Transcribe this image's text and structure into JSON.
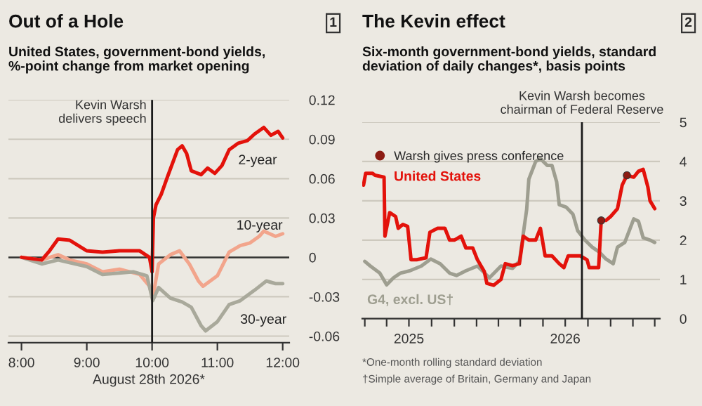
{
  "chart_data": [
    {
      "type": "line",
      "title": "Out of a Hole",
      "subtitle": "United States, government-bond yields,\n%-point change from market opening",
      "xlabel": "August 28th 2026*",
      "annotations": [
        "1"
      ],
      "xlim": [
        7.8,
        12.1
      ],
      "xticks": [
        {
          "value": 8,
          "label": "8:00"
        },
        {
          "value": 9,
          "label": "9:00"
        },
        {
          "value": 10,
          "label": "10:00"
        },
        {
          "value": 11,
          "label": "11:00"
        },
        {
          "value": 12,
          "label": "12:00"
        }
      ],
      "ylim": [
        -0.065,
        0.12
      ],
      "yticks": [
        -0.06,
        -0.03,
        0,
        0.03,
        0.06,
        0.09,
        0.12
      ],
      "grid": "y",
      "legend": false,
      "ref_lines": [
        {
          "axis": "x",
          "value": 10,
          "label": "Kevin Warsh\ndelivers speech",
          "color": "#1a1a1a"
        }
      ],
      "series": [
        {
          "name": "10-year",
          "color": "#f2a58c",
          "x": [
            8.0,
            8.31,
            8.56,
            8.74,
            9.0,
            9.24,
            9.5,
            9.81,
            9.96,
            10.01,
            10.1,
            10.28,
            10.42,
            10.57,
            10.71,
            10.78,
            11.0,
            11.18,
            11.35,
            11.5,
            11.64,
            11.71,
            11.89,
            12.0
          ],
          "values": [
            0.0,
            -0.002,
            0.002,
            -0.002,
            -0.005,
            -0.011,
            -0.009,
            -0.013,
            -0.022,
            -0.031,
            -0.005,
            0.002,
            0.005,
            -0.005,
            -0.018,
            -0.022,
            -0.014,
            0.004,
            0.009,
            0.011,
            0.016,
            0.02,
            0.016,
            0.018
          ]
        },
        {
          "name": "30-year",
          "color": "#a9a99b",
          "x": [
            8.0,
            8.31,
            8.56,
            9.0,
            9.24,
            9.71,
            9.92,
            10.01,
            10.1,
            10.28,
            10.46,
            10.6,
            10.75,
            10.82,
            11.0,
            11.18,
            11.35,
            11.57,
            11.75,
            11.89,
            12.0
          ],
          "values": [
            0.0,
            -0.005,
            -0.002,
            -0.007,
            -0.013,
            -0.011,
            -0.014,
            -0.033,
            -0.023,
            -0.031,
            -0.034,
            -0.038,
            -0.052,
            -0.056,
            -0.049,
            -0.036,
            -0.033,
            -0.025,
            -0.018,
            -0.02,
            -0.02
          ]
        },
        {
          "name": "2-year",
          "color": "#e3120b",
          "x": [
            8.0,
            8.31,
            8.43,
            8.56,
            8.74,
            9.0,
            9.24,
            9.5,
            9.81,
            9.96,
            10.0,
            10.02,
            10.06,
            10.14,
            10.24,
            10.39,
            10.46,
            10.53,
            10.6,
            10.75,
            10.85,
            10.96,
            11.07,
            11.18,
            11.32,
            11.46,
            11.57,
            11.71,
            11.82,
            11.93,
            12.0
          ],
          "values": [
            0.0,
            -0.002,
            0.005,
            0.014,
            0.013,
            0.005,
            0.004,
            0.005,
            0.005,
            0.0,
            -0.011,
            0.03,
            0.04,
            0.048,
            0.062,
            0.082,
            0.085,
            0.079,
            0.066,
            0.063,
            0.068,
            0.064,
            0.07,
            0.082,
            0.087,
            0.089,
            0.094,
            0.099,
            0.093,
            0.096,
            0.091
          ]
        }
      ]
    },
    {
      "type": "line",
      "title": "The Kevin effect",
      "subtitle": "Six-month government-bond yields, standard\ndeviation of daily changes*, basis points",
      "annotations": [
        "2",
        "*One-month rolling standard deviation",
        "†Simple average of Britain, Germany and Japan"
      ],
      "xlim": [
        "2024-09-14",
        "2026-08-10"
      ],
      "xticks": [
        {
          "value": "2024-09-20",
          "label": null
        },
        {
          "value": "2024-11-10",
          "label": null
        },
        {
          "value": "2025-01-01",
          "label": "2025"
        },
        {
          "value": "2025-02-23",
          "label": null
        },
        {
          "value": "2025-04-17",
          "label": null
        },
        {
          "value": "2025-06-08",
          "label": null
        },
        {
          "value": "2025-07-29",
          "label": null
        },
        {
          "value": "2025-09-18",
          "label": null
        },
        {
          "value": "2025-11-10",
          "label": null
        },
        {
          "value": "2026-01-01",
          "label": "2026"
        },
        {
          "value": "2026-02-23",
          "label": null
        },
        {
          "value": "2026-04-17",
          "label": null
        },
        {
          "value": "2026-06-08",
          "label": null
        },
        {
          "value": "2026-07-29",
          "label": null
        }
      ],
      "ylim": [
        0,
        5
      ],
      "yticks": [
        0,
        1,
        2,
        3,
        4,
        5
      ],
      "grid": "y",
      "legend": "top left",
      "ref_lines": [
        {
          "axis": "x",
          "value": "2026-02-09",
          "label": "Kevin Warsh becomes\nchairman of Federal Reserve",
          "color": "#1a1a1a"
        }
      ],
      "series": [
        {
          "name": "G4, excl. US†",
          "color": "#9e9e90",
          "x": [
            "2024-09-20",
            "2024-10-03",
            "2024-10-25",
            "2024-11-10",
            "2024-11-26",
            "2024-12-12",
            "2025-01-03",
            "2025-01-30",
            "2025-02-21",
            "2025-03-15",
            "2025-04-06",
            "2025-04-22",
            "2025-05-14",
            "2025-06-10",
            "2025-07-08",
            "2025-08-04",
            "2025-08-31",
            "2025-09-16",
            "2025-10-03",
            "2025-10-08",
            "2025-10-24",
            "2025-11-04",
            "2025-11-20",
            "2025-12-01",
            "2025-12-12",
            "2025-12-18",
            "2026-01-03",
            "2026-01-19",
            "2026-01-30",
            "2026-02-16",
            "2026-03-05",
            "2026-03-21",
            "2026-04-06",
            "2026-04-23",
            "2026-05-03",
            "2026-05-20",
            "2026-06-10",
            "2026-06-21",
            "2026-07-02",
            "2026-07-18",
            "2026-07-29"
          ],
          "values": [
            1.46,
            1.34,
            1.16,
            0.86,
            1.04,
            1.16,
            1.22,
            1.34,
            1.52,
            1.4,
            1.16,
            1.1,
            1.22,
            1.34,
            1.04,
            1.34,
            1.28,
            1.46,
            2.78,
            3.55,
            4.0,
            4.07,
            3.9,
            3.9,
            3.48,
            2.9,
            2.84,
            2.66,
            2.24,
            2.0,
            1.82,
            1.7,
            1.52,
            1.4,
            1.82,
            1.94,
            2.54,
            2.48,
            2.06,
            2.0,
            1.94
          ]
        },
        {
          "name": "United States",
          "color": "#e3120b",
          "x": [
            "2024-09-17",
            "2024-09-22",
            "2024-10-08",
            "2024-10-14",
            "2024-11-04",
            "2024-11-06",
            "2024-11-17",
            "2024-12-01",
            "2024-12-07",
            "2024-12-18",
            "2024-12-29",
            "2025-01-06",
            "2025-01-19",
            "2025-02-10",
            "2025-02-19",
            "2025-03-09",
            "2025-03-26",
            "2025-04-06",
            "2025-04-17",
            "2025-05-03",
            "2025-05-14",
            "2025-05-30",
            "2025-06-10",
            "2025-06-26",
            "2025-07-02",
            "2025-07-18",
            "2025-08-04",
            "2025-08-14",
            "2025-08-31",
            "2025-09-16",
            "2025-09-25",
            "2025-10-08",
            "2025-10-24",
            "2025-11-04",
            "2025-11-15",
            "2025-12-01",
            "2025-12-18",
            "2025-12-29",
            "2026-01-08",
            "2026-02-05",
            "2026-02-21",
            "2026-02-26",
            "2026-03-20",
            "2026-03-26",
            "2026-04-06",
            "2026-04-17",
            "2026-05-03",
            "2026-05-14",
            "2026-05-25",
            "2026-06-10",
            "2026-06-21",
            "2026-07-02",
            "2026-07-13",
            "2026-07-18",
            "2026-07-29"
          ],
          "values": [
            3.4,
            3.7,
            3.7,
            3.65,
            3.6,
            2.1,
            2.7,
            2.6,
            2.3,
            2.4,
            2.35,
            1.5,
            1.5,
            1.55,
            2.2,
            2.3,
            2.3,
            2.0,
            2.0,
            2.1,
            1.8,
            1.8,
            1.5,
            1.2,
            0.9,
            0.85,
            1.0,
            1.4,
            1.35,
            1.4,
            2.1,
            2.0,
            2.0,
            2.3,
            1.6,
            1.6,
            1.4,
            1.3,
            1.6,
            1.6,
            1.5,
            1.3,
            1.3,
            2.5,
            2.5,
            2.6,
            2.8,
            3.4,
            3.65,
            3.6,
            3.75,
            3.8,
            3.35,
            3.0,
            2.8
          ]
        },
        {
          "name": "Warsh gives press conference",
          "type": "scatter",
          "marker": "circle",
          "color": "#8c1c13",
          "x": [
            "2026-03-26",
            "2026-05-25"
          ],
          "values": [
            2.5,
            3.65
          ]
        }
      ]
    }
  ]
}
